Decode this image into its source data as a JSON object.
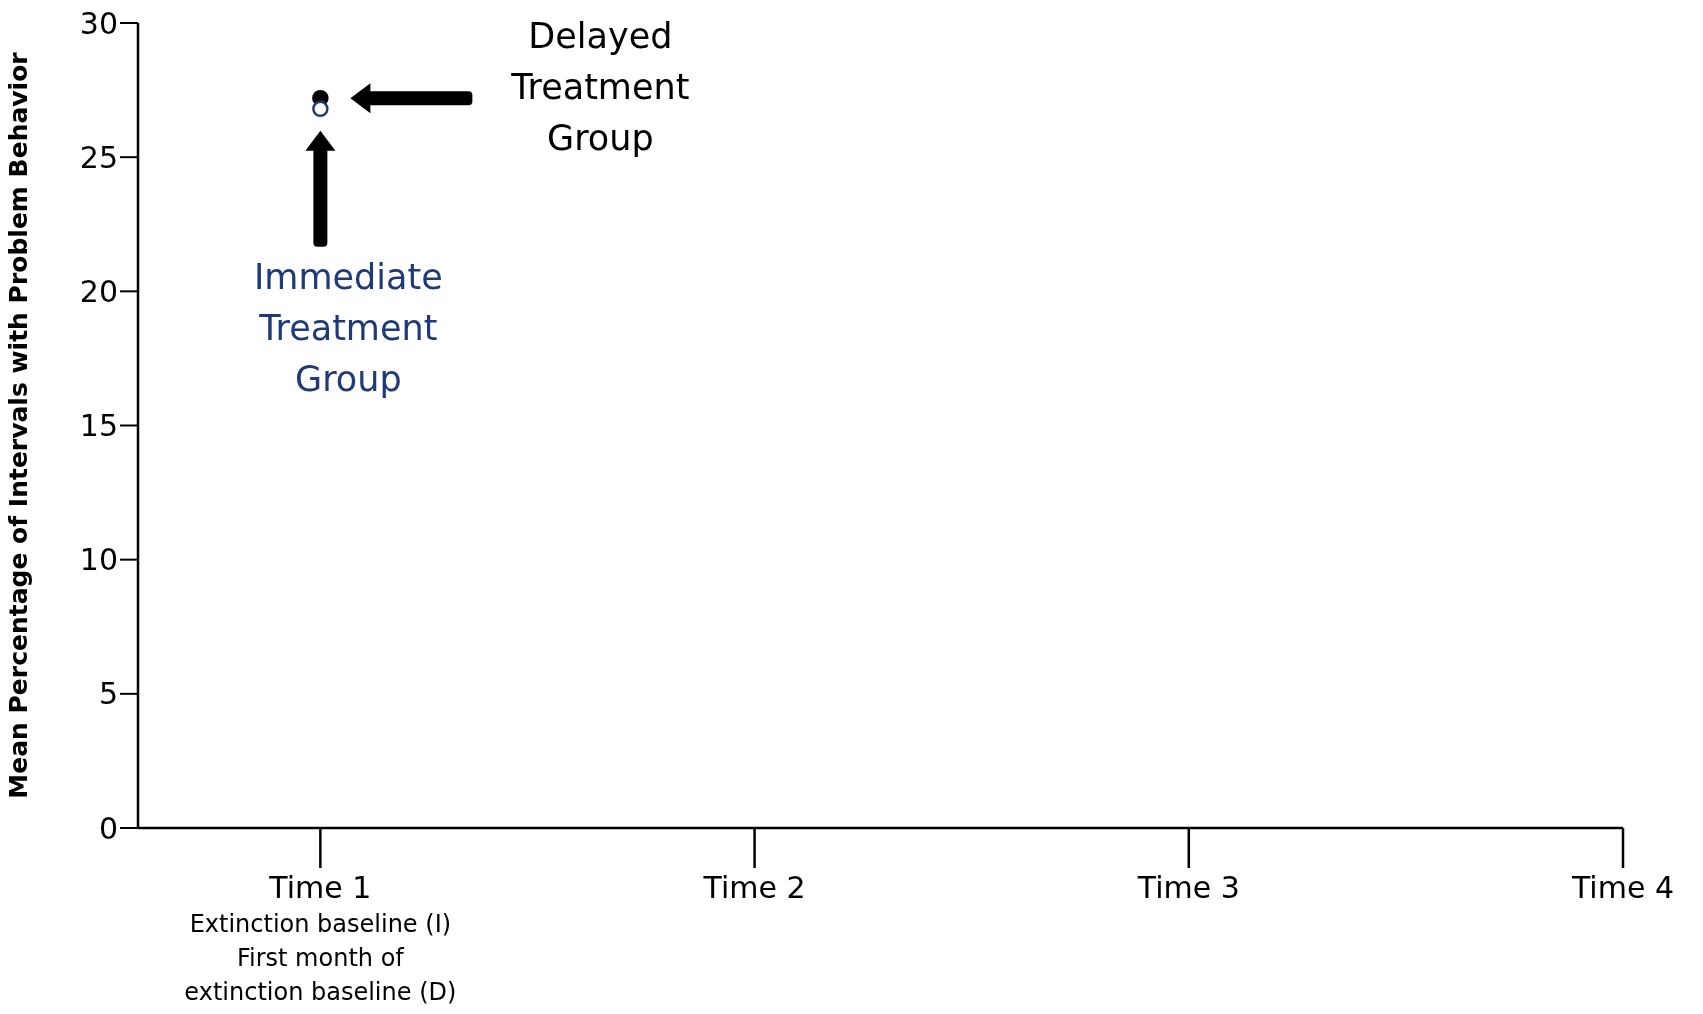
{
  "chart_data": {
    "type": "scatter",
    "ylabel": "Mean Percentage of Intervals with Problem Behavior",
    "categories": [
      "Time 1\nExtinction baseline (I)\nFirst month of\nextinction baseline (D)",
      "Time 2",
      "Time 3",
      "Time 4"
    ],
    "series": [
      {
        "name": "Delayed Treatment Group",
        "color": "#000000",
        "values": [
          27.2,
          null,
          null,
          null
        ]
      },
      {
        "name": "Immediate Treatment Group",
        "color": "#1f3a78",
        "values": [
          26.8,
          null,
          null,
          null
        ]
      }
    ],
    "ylim": [
      0,
      30
    ],
    "yticks": [
      0,
      5,
      10,
      15,
      20,
      25,
      30
    ],
    "marker": "circle"
  }
}
